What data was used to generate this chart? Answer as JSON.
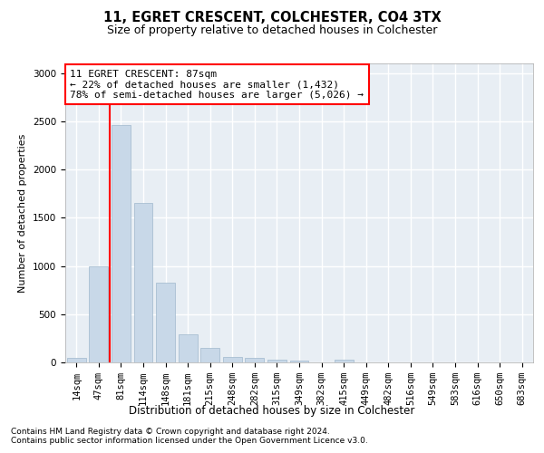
{
  "title1": "11, EGRET CRESCENT, COLCHESTER, CO4 3TX",
  "title2": "Size of property relative to detached houses in Colchester",
  "xlabel": "Distribution of detached houses by size in Colchester",
  "ylabel": "Number of detached properties",
  "footer1": "Contains HM Land Registry data © Crown copyright and database right 2024.",
  "footer2": "Contains public sector information licensed under the Open Government Licence v3.0.",
  "bin_labels": [
    "14sqm",
    "47sqm",
    "81sqm",
    "114sqm",
    "148sqm",
    "181sqm",
    "215sqm",
    "248sqm",
    "282sqm",
    "315sqm",
    "349sqm",
    "382sqm",
    "415sqm",
    "449sqm",
    "482sqm",
    "516sqm",
    "549sqm",
    "583sqm",
    "616sqm",
    "650sqm",
    "683sqm"
  ],
  "bar_values": [
    50,
    1000,
    2460,
    1650,
    830,
    290,
    150,
    55,
    45,
    30,
    20,
    0,
    30,
    0,
    0,
    0,
    0,
    0,
    0,
    0,
    0
  ],
  "property_bin_index": 2,
  "annotation_text": "11 EGRET CRESCENT: 87sqm\n← 22% of detached houses are smaller (1,432)\n78% of semi-detached houses are larger (5,026) →",
  "bar_color": "#c8d8e8",
  "bar_edge_color": "#a0b8cc",
  "annotation_box_color": "white",
  "annotation_box_edge_color": "red",
  "marker_line_color": "red",
  "ylim": [
    0,
    3100
  ],
  "yticks": [
    0,
    500,
    1000,
    1500,
    2000,
    2500,
    3000
  ],
  "background_color": "#e8eef4",
  "grid_color": "white",
  "title1_fontsize": 10.5,
  "title2_fontsize": 9,
  "ylabel_fontsize": 8,
  "xlabel_fontsize": 8.5,
  "tick_fontsize": 7.5,
  "annotation_fontsize": 8,
  "footer_fontsize": 6.5
}
